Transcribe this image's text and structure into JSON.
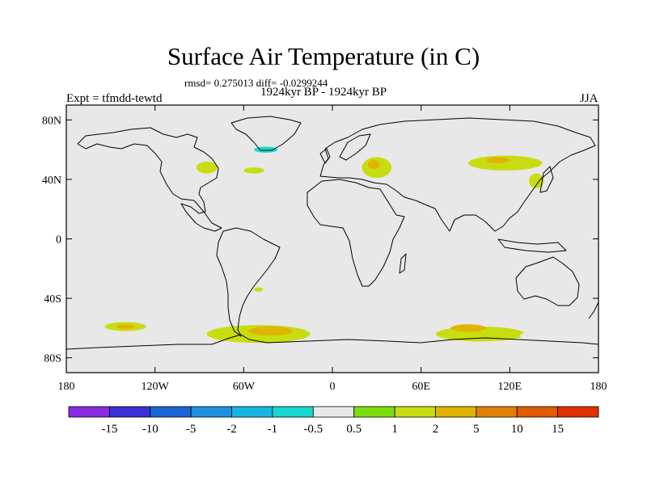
{
  "title": "Surface Air Temperature (in C)",
  "stats": "rmsd= 0.275013 diff= -0.0299244",
  "period": "1924kyr BP - 1924kyr BP",
  "experiment": "Expt = tfmdd-tewtd",
  "season": "JJA",
  "map": {
    "projection": "cylindrical-equidistant",
    "lon_range": [
      -180,
      180
    ],
    "lat_range": [
      -90,
      90
    ],
    "background_color": "#e8e8e8",
    "coastline_color": "#000000",
    "x_ticks": [
      {
        "lon": -180,
        "label": "180"
      },
      {
        "lon": -120,
        "label": "120W"
      },
      {
        "lon": -60,
        "label": "60W"
      },
      {
        "lon": 0,
        "label": "0"
      },
      {
        "lon": 60,
        "label": "60E"
      },
      {
        "lon": 120,
        "label": "120E"
      },
      {
        "lon": 180,
        "label": "180"
      }
    ],
    "y_ticks": [
      {
        "lat": 80,
        "label": "80N"
      },
      {
        "lat": 40,
        "label": "40N"
      },
      {
        "lat": 0,
        "label": "0"
      },
      {
        "lat": -40,
        "label": "40S"
      },
      {
        "lat": -80,
        "label": "80S"
      }
    ],
    "anomalies": [
      {
        "lat": 48,
        "lon": -85,
        "rlat": 4,
        "rlon": 7,
        "cls": 8
      },
      {
        "lat": 46,
        "lon": -53,
        "rlat": 2,
        "rlon": 7,
        "cls": 8
      },
      {
        "lat": 60,
        "lon": -40,
        "rlat": 4,
        "rlon": 18,
        "cls": 6
      },
      {
        "lat": 60,
        "lon": -45,
        "rlat": 2,
        "rlon": 8,
        "cls": 5
      },
      {
        "lat": 64,
        "lon": -170,
        "rlat": 2,
        "rlon": 6,
        "cls": 6
      },
      {
        "lat": 18,
        "lon": -125,
        "rlat": 2,
        "rlon": 18,
        "cls": 6
      },
      {
        "lat": 22,
        "lon": 3,
        "rlat": 6,
        "rlon": 10,
        "cls": 6
      },
      {
        "lat": 48,
        "lon": 30,
        "rlat": 7,
        "rlon": 10,
        "cls": 8
      },
      {
        "lat": 50,
        "lon": 28,
        "rlat": 3,
        "rlon": 4,
        "cls": 9
      },
      {
        "lat": 51,
        "lon": 117,
        "rlat": 5,
        "rlon": 25,
        "cls": 8
      },
      {
        "lat": 53,
        "lon": 112,
        "rlat": 2,
        "rlon": 8,
        "cls": 9
      },
      {
        "lat": 39,
        "lon": 138,
        "rlat": 5,
        "rlon": 5,
        "cls": 8
      },
      {
        "lat": 31,
        "lon": 78,
        "rlat": 2,
        "rlon": 5,
        "cls": 6
      },
      {
        "lat": 28,
        "lon": 130,
        "rlat": 2,
        "rlon": 4,
        "cls": 6
      },
      {
        "lat": 68,
        "lon": 72,
        "rlat": 2,
        "rlon": 15,
        "cls": 6
      },
      {
        "lat": 62,
        "lon": 160,
        "rlat": 2,
        "rlon": 6,
        "cls": 6
      },
      {
        "lat": -59,
        "lon": -140,
        "rlat": 3,
        "rlon": 14,
        "cls": 8
      },
      {
        "lat": -59,
        "lon": -140,
        "rlat": 1.5,
        "rlon": 6,
        "cls": 9
      },
      {
        "lat": -64,
        "lon": -50,
        "rlat": 6,
        "rlon": 35,
        "cls": 8
      },
      {
        "lat": -62,
        "lon": -42,
        "rlat": 3,
        "rlon": 15,
        "cls": 9
      },
      {
        "lat": -58,
        "lon": 15,
        "rlat": 2.5,
        "rlon": 30,
        "cls": 6
      },
      {
        "lat": -64,
        "lon": 100,
        "rlat": 5,
        "rlon": 30,
        "cls": 8
      },
      {
        "lat": -60,
        "lon": 92,
        "rlat": 2.5,
        "rlon": 12,
        "cls": 9
      },
      {
        "lat": -65,
        "lon": 143,
        "rlat": 3,
        "rlon": 16,
        "cls": 6
      },
      {
        "lat": -52,
        "lon": -178,
        "rlat": 1.5,
        "rlon": 3,
        "cls": 6
      },
      {
        "lat": -52,
        "lon": 178,
        "rlat": 1.5,
        "rlon": 3,
        "cls": 6
      },
      {
        "lat": -34,
        "lon": -50,
        "rlat": 1.5,
        "rlon": 3,
        "cls": 8
      }
    ]
  },
  "colorbar": {
    "colors": [
      "#8a2be2",
      "#3b2fd6",
      "#1a66d6",
      "#1e90e0",
      "#16b4e0",
      "#18d8d0",
      "#e8e8e8",
      "#7cdc10",
      "#c8dc10",
      "#e0b400",
      "#e08000",
      "#e05a00",
      "#e03000"
    ],
    "labels": [
      "-15",
      "-10",
      "-5",
      "-2",
      "-1",
      "-0.5",
      "0.5",
      "1",
      "2",
      "5",
      "10",
      "15"
    ]
  }
}
